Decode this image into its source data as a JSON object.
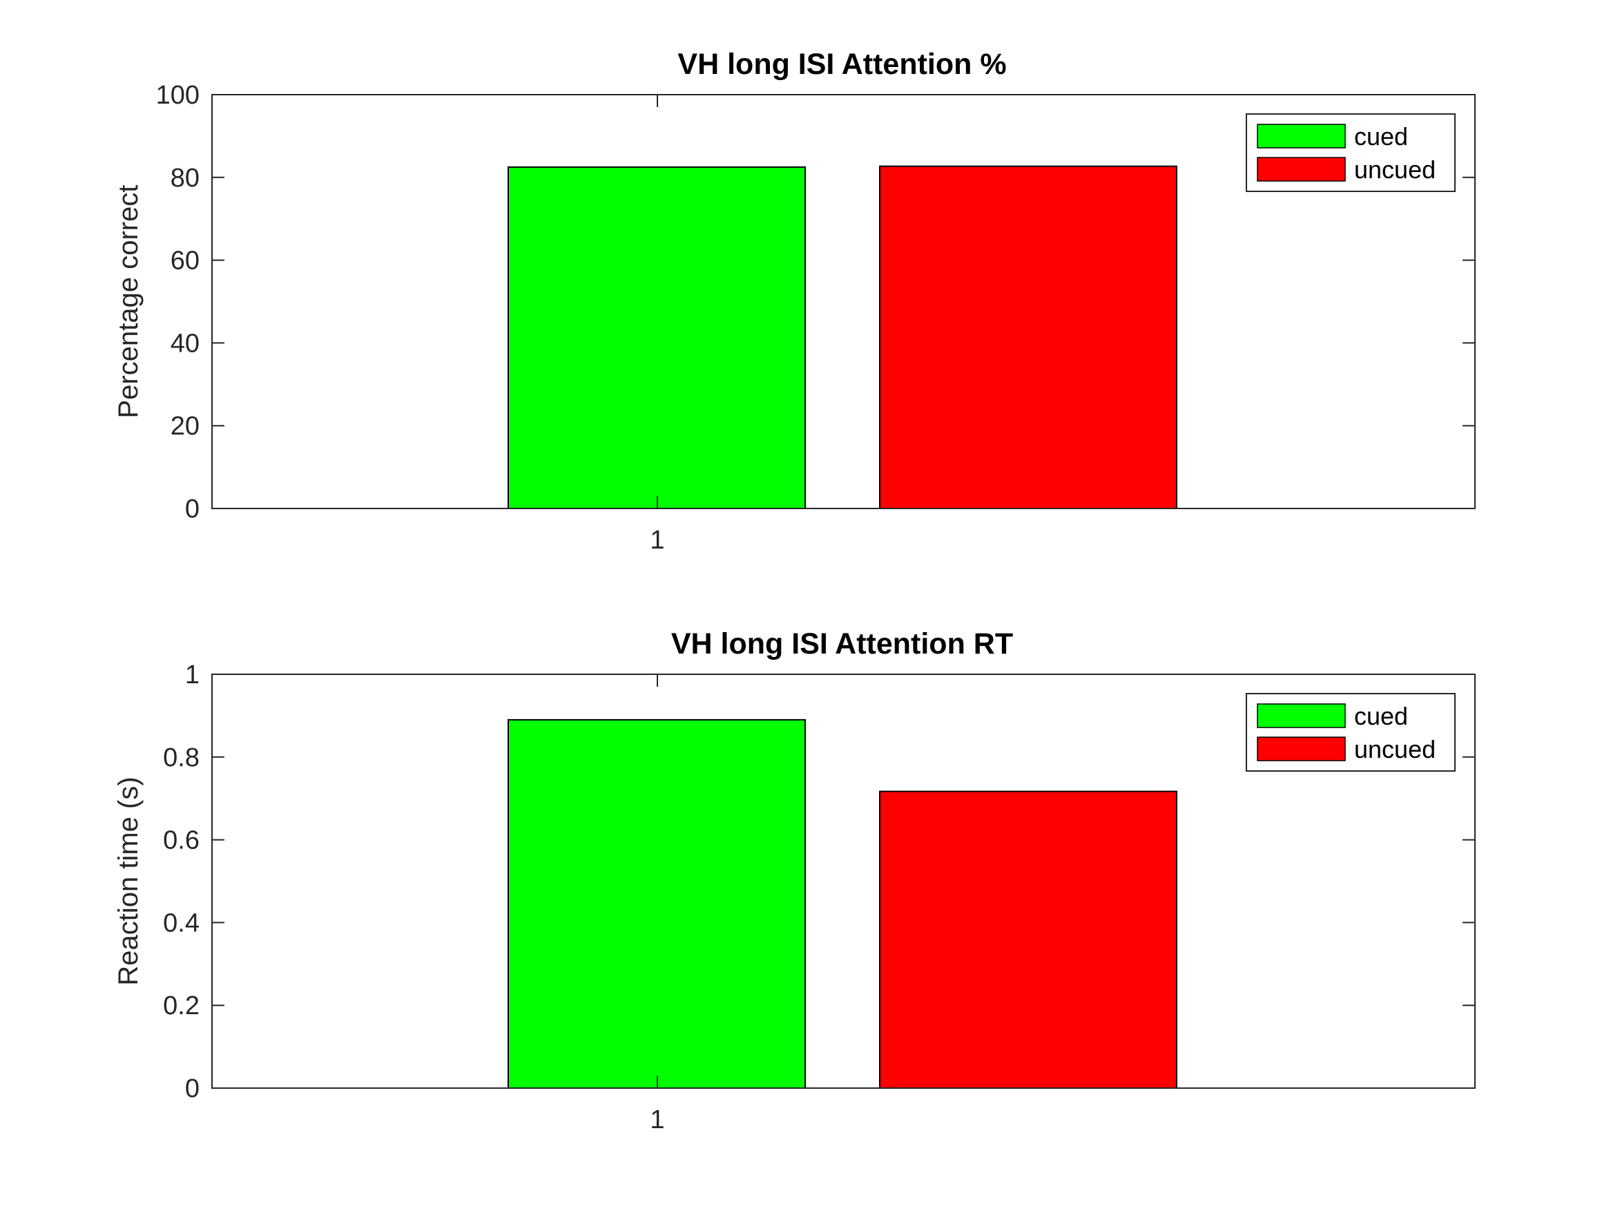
{
  "chart_data": [
    {
      "type": "bar",
      "title": "VH long ISI Attention %",
      "xlabel": "",
      "ylabel": "Percentage correct",
      "categories": [
        "1"
      ],
      "ylim": [
        0,
        100
      ],
      "yticks": [
        "0",
        "20",
        "40",
        "60",
        "80",
        "100"
      ],
      "ytick_values": [
        0,
        20,
        40,
        60,
        80,
        100
      ],
      "series": [
        {
          "name": "cued",
          "values": [
            82.5
          ],
          "color": "#00ff00"
        },
        {
          "name": "uncued",
          "values": [
            82.7
          ],
          "color": "#ff0000"
        }
      ],
      "legend_position": "top-right",
      "grid": false
    },
    {
      "type": "bar",
      "title": "VH long ISI Attention RT",
      "xlabel": "",
      "ylabel": "Reaction time (s)",
      "categories": [
        "1"
      ],
      "ylim": [
        0,
        1
      ],
      "yticks": [
        "0",
        "0.2",
        "0.4",
        "0.6",
        "0.8",
        "1"
      ],
      "ytick_values": [
        0,
        0.2,
        0.4,
        0.6,
        0.8,
        1
      ],
      "series": [
        {
          "name": "cued",
          "values": [
            0.89
          ],
          "color": "#00ff00"
        },
        {
          "name": "uncued",
          "values": [
            0.717
          ],
          "color": "#ff0000"
        }
      ],
      "legend_position": "top-right",
      "grid": false
    }
  ]
}
